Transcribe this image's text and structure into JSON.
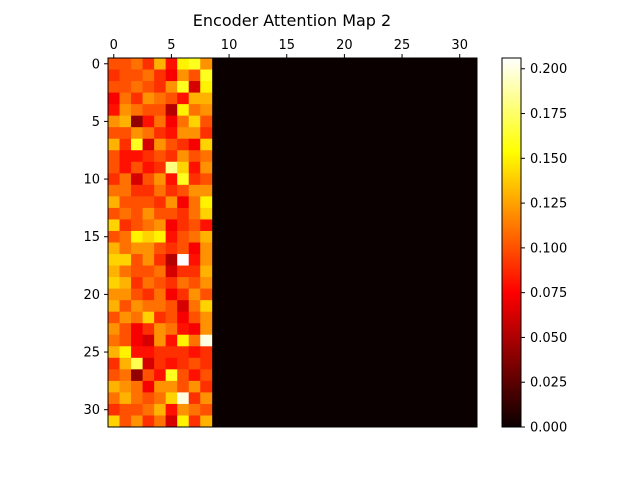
{
  "chart_data": {
    "type": "heatmap",
    "title": "Encoder Attention Map 2",
    "colormap": "hot",
    "rows": 32,
    "cols": 32,
    "active_cols": 9,
    "x_ticks": [
      0,
      5,
      10,
      15,
      20,
      25,
      30
    ],
    "y_ticks": [
      0,
      5,
      10,
      15,
      20,
      25,
      30
    ],
    "x_axis_position": "top",
    "colorbar": {
      "min": 0.0,
      "max": 0.206,
      "ticks": [
        "0.000",
        "0.025",
        "0.050",
        "0.075",
        "0.100",
        "0.125",
        "0.150",
        "0.175",
        "0.200"
      ],
      "tick_values": [
        0.0,
        0.025,
        0.05,
        0.075,
        0.1,
        0.125,
        0.15,
        0.175,
        0.2
      ],
      "position": "right"
    },
    "values": [
      [
        0.1,
        0.1,
        0.11,
        0.09,
        0.13,
        0.08,
        0.15,
        0.16,
        0.12
      ],
      [
        0.09,
        0.1,
        0.1,
        0.11,
        0.09,
        0.07,
        0.12,
        0.1,
        0.16
      ],
      [
        0.1,
        0.1,
        0.11,
        0.1,
        0.09,
        0.12,
        0.16,
        0.06,
        0.15
      ],
      [
        0.07,
        0.11,
        0.09,
        0.12,
        0.11,
        0.1,
        0.08,
        0.13,
        0.13
      ],
      [
        0.08,
        0.12,
        0.11,
        0.1,
        0.1,
        0.05,
        0.15,
        0.11,
        0.12
      ],
      [
        0.12,
        0.13,
        0.04,
        0.08,
        0.11,
        0.07,
        0.11,
        0.14,
        0.1
      ],
      [
        0.1,
        0.1,
        0.12,
        0.11,
        0.09,
        0.08,
        0.12,
        0.12,
        0.09
      ],
      [
        0.13,
        0.09,
        0.16,
        0.06,
        0.12,
        0.1,
        0.09,
        0.07,
        0.14
      ],
      [
        0.1,
        0.08,
        0.08,
        0.09,
        0.1,
        0.09,
        0.12,
        0.1,
        0.11
      ],
      [
        0.1,
        0.08,
        0.1,
        0.08,
        0.09,
        0.18,
        0.14,
        0.08,
        0.12
      ],
      [
        0.09,
        0.11,
        0.06,
        0.1,
        0.12,
        0.08,
        0.16,
        0.09,
        0.1
      ],
      [
        0.11,
        0.11,
        0.09,
        0.09,
        0.11,
        0.09,
        0.1,
        0.12,
        0.12
      ],
      [
        0.13,
        0.1,
        0.1,
        0.1,
        0.09,
        0.12,
        0.07,
        0.11,
        0.15
      ],
      [
        0.1,
        0.11,
        0.1,
        0.12,
        0.1,
        0.1,
        0.09,
        0.11,
        0.14
      ],
      [
        0.14,
        0.09,
        0.1,
        0.11,
        0.12,
        0.07,
        0.09,
        0.1,
        0.08
      ],
      [
        0.1,
        0.11,
        0.15,
        0.14,
        0.15,
        0.08,
        0.1,
        0.11,
        0.13
      ],
      [
        0.13,
        0.11,
        0.12,
        0.12,
        0.1,
        0.09,
        0.1,
        0.07,
        0.12
      ],
      [
        0.14,
        0.14,
        0.1,
        0.12,
        0.09,
        0.05,
        0.21,
        0.08,
        0.12
      ],
      [
        0.13,
        0.11,
        0.1,
        0.1,
        0.11,
        0.06,
        0.09,
        0.09,
        0.13
      ],
      [
        0.14,
        0.13,
        0.09,
        0.11,
        0.1,
        0.09,
        0.11,
        0.1,
        0.12
      ],
      [
        0.12,
        0.12,
        0.1,
        0.09,
        0.11,
        0.07,
        0.09,
        0.12,
        0.1
      ],
      [
        0.13,
        0.1,
        0.12,
        0.11,
        0.11,
        0.1,
        0.06,
        0.11,
        0.14
      ],
      [
        0.1,
        0.12,
        0.11,
        0.14,
        0.09,
        0.1,
        0.07,
        0.1,
        0.12
      ],
      [
        0.12,
        0.1,
        0.07,
        0.09,
        0.12,
        0.11,
        0.08,
        0.07,
        0.12
      ],
      [
        0.11,
        0.1,
        0.07,
        0.06,
        0.12,
        0.08,
        0.15,
        0.11,
        0.2
      ],
      [
        0.13,
        0.15,
        0.08,
        0.08,
        0.09,
        0.09,
        0.09,
        0.08,
        0.09
      ],
      [
        0.09,
        0.13,
        0.17,
        0.06,
        0.09,
        0.08,
        0.09,
        0.1,
        0.09
      ],
      [
        0.1,
        0.11,
        0.04,
        0.1,
        0.08,
        0.16,
        0.1,
        0.08,
        0.1
      ],
      [
        0.13,
        0.12,
        0.11,
        0.07,
        0.12,
        0.12,
        0.1,
        0.12,
        0.09
      ],
      [
        0.11,
        0.13,
        0.11,
        0.1,
        0.11,
        0.14,
        0.2,
        0.09,
        0.12
      ],
      [
        0.09,
        0.1,
        0.1,
        0.11,
        0.13,
        0.08,
        0.12,
        0.11,
        0.1
      ],
      [
        0.14,
        0.1,
        0.12,
        0.09,
        0.11,
        0.06,
        0.15,
        0.09,
        0.13
      ]
    ]
  }
}
